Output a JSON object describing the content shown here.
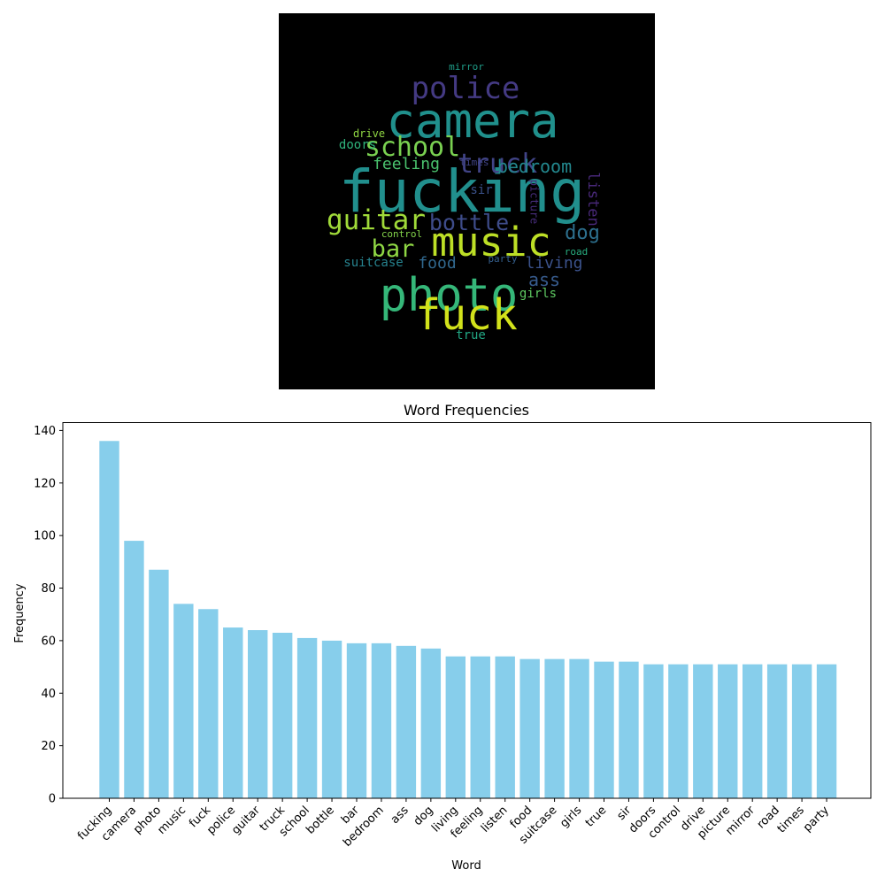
{
  "chart_data": [
    {
      "type": "wordcloud",
      "words": [
        {
          "text": "fucking",
          "color": "#218f8d"
        },
        {
          "text": "camera",
          "color": "#20908c"
        },
        {
          "text": "photo",
          "color": "#35b779"
        },
        {
          "text": "music",
          "color": "#bddf26"
        },
        {
          "text": "fuck",
          "color": "#d2e21b"
        },
        {
          "text": "police",
          "color": "#443a83"
        },
        {
          "text": "guitar",
          "color": "#a0da39"
        },
        {
          "text": "truck",
          "color": "#414487"
        },
        {
          "text": "school",
          "color": "#7ad151"
        },
        {
          "text": "bottle",
          "color": "#3e4c8a"
        },
        {
          "text": "bar",
          "color": "#8fd744"
        },
        {
          "text": "bedroom",
          "color": "#23888e"
        },
        {
          "text": "ass",
          "color": "#375b8d"
        },
        {
          "text": "dog",
          "color": "#2d708e"
        },
        {
          "text": "living",
          "color": "#3b528b"
        },
        {
          "text": "feeling",
          "color": "#4ac16d"
        },
        {
          "text": "listen",
          "color": "#482878"
        },
        {
          "text": "food",
          "color": "#31688e"
        },
        {
          "text": "suitcase",
          "color": "#26828e"
        },
        {
          "text": "girls",
          "color": "#5ec962"
        },
        {
          "text": "true",
          "color": "#22a884"
        },
        {
          "text": "sir",
          "color": "#3b528b"
        },
        {
          "text": "doors",
          "color": "#2fb47c"
        },
        {
          "text": "control",
          "color": "#84d44b"
        },
        {
          "text": "drive",
          "color": "#90d743"
        },
        {
          "text": "picture",
          "color": "#472d7b"
        },
        {
          "text": "mirror",
          "color": "#1f9e89"
        },
        {
          "text": "road",
          "color": "#28ae80"
        },
        {
          "text": "times",
          "color": "#414487"
        },
        {
          "text": "party",
          "color": "#355f8d"
        }
      ]
    },
    {
      "type": "bar",
      "title": "Word Frequencies",
      "xlabel": "Word",
      "ylabel": "Frequency",
      "ylim": [
        0,
        143
      ],
      "yticks": [
        0,
        20,
        40,
        60,
        80,
        100,
        120,
        140
      ],
      "bar_color": "#87ceeb",
      "categories": [
        "fucking",
        "camera",
        "photo",
        "music",
        "fuck",
        "police",
        "guitar",
        "truck",
        "school",
        "bottle",
        "bar",
        "bedroom",
        "ass",
        "dog",
        "living",
        "feeling",
        "listen",
        "food",
        "suitcase",
        "girls",
        "true",
        "sir",
        "doors",
        "control",
        "drive",
        "picture",
        "mirror",
        "road",
        "times",
        "party"
      ],
      "values": [
        136,
        98,
        87,
        74,
        72,
        65,
        64,
        63,
        61,
        60,
        59,
        59,
        58,
        57,
        54,
        54,
        54,
        53,
        53,
        53,
        52,
        52,
        51,
        51,
        51,
        51,
        51,
        51,
        51,
        51
      ]
    }
  ]
}
